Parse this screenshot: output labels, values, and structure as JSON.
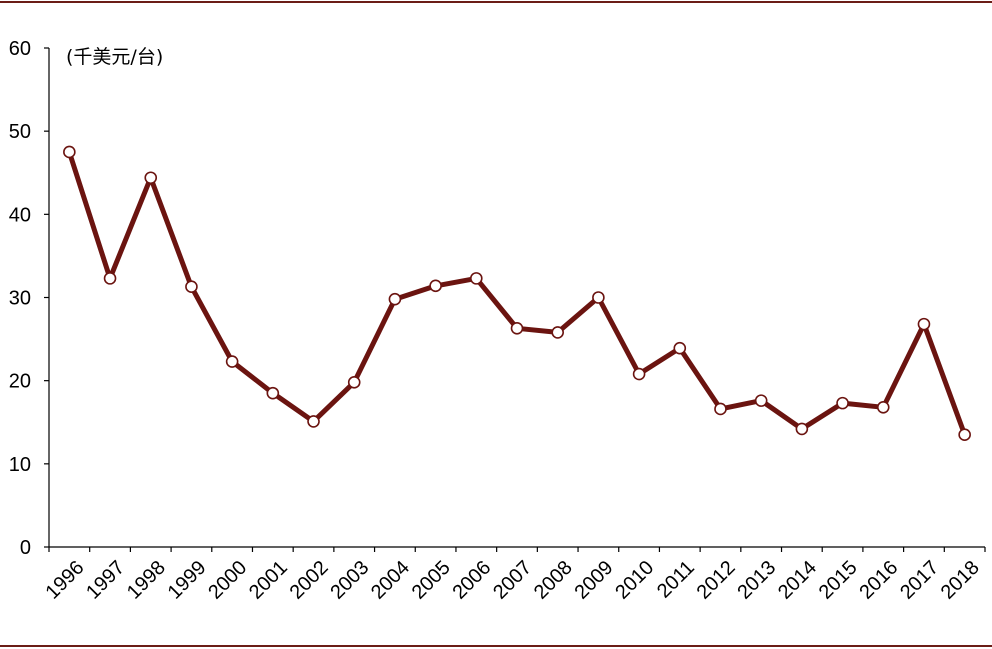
{
  "chart_data": {
    "type": "line",
    "title": "",
    "unit_label": "(千美元/台)",
    "xlabel": "",
    "ylabel": "",
    "x": [
      "1996",
      "1997",
      "1998",
      "1999",
      "2000",
      "2001",
      "2002",
      "2003",
      "2004",
      "2005",
      "2006",
      "2007",
      "2008",
      "2009",
      "2010",
      "2011",
      "2012",
      "2013",
      "2014",
      "2015",
      "2016",
      "2017",
      "2018"
    ],
    "series": [
      {
        "values": [
          47.5,
          32.3,
          44.4,
          31.3,
          22.3,
          18.5,
          15.1,
          19.8,
          29.8,
          31.4,
          32.3,
          26.3,
          25.8,
          30.0,
          20.8,
          23.9,
          16.6,
          17.6,
          14.2,
          17.3,
          16.8,
          26.8,
          13.5
        ]
      }
    ],
    "ylim": [
      0,
      60
    ],
    "yticks": [
      "0",
      "10",
      "20",
      "30",
      "40",
      "50",
      "60"
    ],
    "grid": false,
    "legend": "none",
    "colors": {
      "line": "#6b1410",
      "marker_fill": "#ffffff",
      "frame": "#6b1d16"
    }
  }
}
